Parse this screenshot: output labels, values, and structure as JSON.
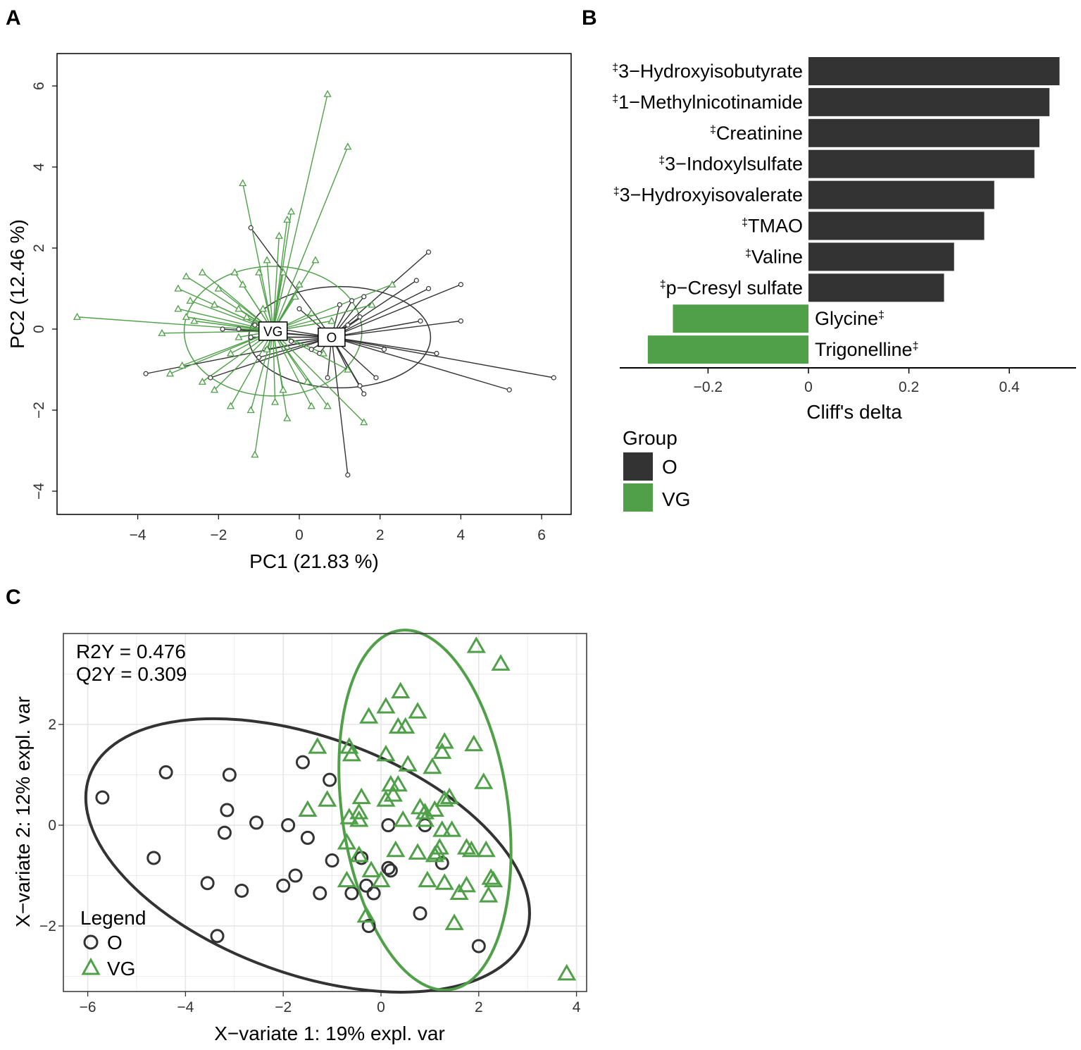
{
  "colors": {
    "O": "#333333",
    "VG": "#4fa048",
    "grid": "#e6e6e6"
  },
  "panels": {
    "A": "A",
    "B": "B",
    "C": "C"
  },
  "chart_data": [
    {
      "panel": "A",
      "type": "scatter",
      "title": "",
      "xlabel": "PC1 (21.83 %)",
      "ylabel": "PC2 (12.46 %)",
      "xlim": [
        -6,
        6.8
      ],
      "ylim": [
        -4.5,
        6.8
      ],
      "xticks": [
        -4,
        -2,
        0,
        2,
        4,
        6
      ],
      "yticks": [
        -4,
        -2,
        0,
        2,
        4,
        6
      ],
      "xtick_labels": [
        "−4",
        "−2",
        "0",
        "2",
        "4",
        "6"
      ],
      "ytick_labels": [
        "−4",
        "−2",
        "0",
        "2",
        "4",
        "6"
      ],
      "centroids": [
        {
          "group": "O",
          "label": "O",
          "x": 0.8,
          "y": -0.2
        },
        {
          "group": "VG",
          "label": "VG",
          "x": -0.65,
          "y": -0.05
        }
      ],
      "ellipses": [
        {
          "group": "O",
          "cx": 1.0,
          "cy": -0.2,
          "rx": 2.25,
          "ry": 1.25
        },
        {
          "group": "VG",
          "cx": -0.65,
          "cy": -0.05,
          "rx": 2.2,
          "ry": 1.6
        }
      ],
      "series": [
        {
          "name": "O",
          "points": [
            [
              -1.2,
              2.5
            ],
            [
              3.2,
              1.9
            ],
            [
              2.9,
              1.2
            ],
            [
              4.0,
              1.1
            ],
            [
              3.2,
              1.0
            ],
            [
              1.6,
              0.8
            ],
            [
              1.3,
              0.7
            ],
            [
              1.0,
              0.6
            ],
            [
              4.0,
              0.2
            ],
            [
              1.5,
              0.3
            ],
            [
              1.2,
              0.1
            ],
            [
              3.0,
              0.2
            ],
            [
              -1.9,
              0.0
            ],
            [
              -1.5,
              0.0
            ],
            [
              -1.1,
              0.1
            ],
            [
              -1.2,
              -0.2
            ],
            [
              2.1,
              -0.5
            ],
            [
              3.4,
              -0.6
            ],
            [
              6.3,
              -1.2
            ],
            [
              5.2,
              -1.5
            ],
            [
              -3.8,
              -1.1
            ],
            [
              -2.2,
              -1.2
            ],
            [
              -1.0,
              -0.7
            ],
            [
              0.5,
              -0.6
            ],
            [
              1.2,
              -1.0
            ],
            [
              0.7,
              -1.2
            ],
            [
              1.9,
              -1.2
            ],
            [
              1.5,
              -1.4
            ],
            [
              1.6,
              -1.6
            ],
            [
              1.2,
              -3.6
            ],
            [
              0.3,
              -0.5
            ],
            [
              -0.8,
              -0.5
            ],
            [
              0.0,
              0.5
            ],
            [
              -0.5,
              -0.2
            ],
            [
              -0.2,
              -0.3
            ]
          ]
        },
        {
          "name": "VG",
          "points": [
            [
              -5.5,
              0.3
            ],
            [
              0.7,
              5.8
            ],
            [
              1.2,
              4.5
            ],
            [
              -1.4,
              3.6
            ],
            [
              -0.2,
              2.9
            ],
            [
              -0.3,
              2.7
            ],
            [
              -0.5,
              2.3
            ],
            [
              -0.8,
              1.7
            ],
            [
              0.4,
              1.7
            ],
            [
              -1.0,
              1.4
            ],
            [
              -2.8,
              1.3
            ],
            [
              -2.4,
              1.4
            ],
            [
              -1.6,
              1.4
            ],
            [
              -0.4,
              1.4
            ],
            [
              -3.0,
              1.0
            ],
            [
              -2.0,
              1.0
            ],
            [
              -1.4,
              1.1
            ],
            [
              0.0,
              1.1
            ],
            [
              2.3,
              1.1
            ],
            [
              -2.7,
              0.7
            ],
            [
              -0.1,
              0.8
            ],
            [
              -2.1,
              0.6
            ],
            [
              -3.0,
              0.5
            ],
            [
              1.8,
              0.6
            ],
            [
              -2.8,
              0.3
            ],
            [
              -1.5,
              0.5
            ],
            [
              -3.4,
              -0.1
            ],
            [
              -2.6,
              0.2
            ],
            [
              -2.9,
              -0.9
            ],
            [
              -3.2,
              -1.1
            ],
            [
              -2.4,
              -1.3
            ],
            [
              -1.7,
              -0.6
            ],
            [
              -2.1,
              -1.5
            ],
            [
              -1.7,
              -1.9
            ],
            [
              -1.2,
              -2.0
            ],
            [
              -0.6,
              -1.8
            ],
            [
              -0.4,
              -1.5
            ],
            [
              0.3,
              -1.9
            ],
            [
              0.7,
              -1.9
            ],
            [
              -0.3,
              -2.2
            ],
            [
              1.6,
              -2.3
            ],
            [
              -1.1,
              -3.1
            ],
            [
              0.2,
              -1.3
            ],
            [
              0.6,
              -0.6
            ],
            [
              1.2,
              -1.0
            ],
            [
              -0.8,
              -0.5
            ],
            [
              -1.5,
              -0.2
            ],
            [
              0.3,
              0.4
            ],
            [
              -1.3,
              0.3
            ],
            [
              -0.9,
              0.5
            ],
            [
              0.8,
              0.2
            ]
          ]
        }
      ]
    },
    {
      "panel": "B",
      "type": "bar",
      "orientation": "horizontal",
      "xlabel": "Cliff's delta",
      "xlim": [
        -0.37,
        0.53
      ],
      "xticks": [
        -0.2,
        0,
        0.2,
        0.4
      ],
      "xtick_labels": [
        "−0.2",
        "0",
        "0.2",
        "0.4"
      ],
      "categories": [
        "3−Hydroxyisobutyrate",
        "1−Methylnicotinamide",
        "Creatinine",
        "3−Indoxylsulfate",
        "3−Hydroxyisovalerate",
        "TMAO",
        "Valine",
        "p−Cresyl sulfate",
        "Glycine",
        "Trigonelline"
      ],
      "dagger": "‡",
      "values": [
        0.5,
        0.48,
        0.46,
        0.45,
        0.37,
        0.35,
        0.29,
        0.27,
        -0.27,
        -0.32
      ],
      "groups": [
        "O",
        "O",
        "O",
        "O",
        "O",
        "O",
        "O",
        "O",
        "VG",
        "VG"
      ],
      "legend": {
        "title": "Group",
        "items": [
          "O",
          "VG"
        ]
      }
    },
    {
      "panel": "C",
      "type": "scatter",
      "xlabel": "X−variate 1: 19% expl. var",
      "ylabel": "X−variate 2: 12% expl. var",
      "xlim": [
        -6.6,
        4.3
      ],
      "ylim": [
        -3.3,
        3.8
      ],
      "xticks": [
        -6,
        -4,
        -2,
        0,
        2,
        4
      ],
      "yticks": [
        -2,
        0,
        2
      ],
      "xtick_labels": [
        "−6",
        "−4",
        "−2",
        "0",
        "2",
        "4"
      ],
      "ytick_labels": [
        "−2",
        "0",
        "2"
      ],
      "annotations": [
        "R2Y = 0.476",
        "Q2Y = 0.309"
      ],
      "legend": {
        "title": "Legend",
        "items": [
          "O",
          "VG"
        ]
      },
      "ellipses": [
        {
          "group": "O",
          "cx": -1.5,
          "cy": -0.6,
          "rx": 4.75,
          "ry": 2.35,
          "angle_deg": 20
        },
        {
          "group": "VG",
          "cx": 0.9,
          "cy": 0.3,
          "rx": 1.7,
          "ry": 3.6,
          "angle_deg": -8
        }
      ],
      "series": [
        {
          "name": "O",
          "points": [
            [
              -5.7,
              0.55
            ],
            [
              -4.4,
              1.05
            ],
            [
              -3.1,
              1.0
            ],
            [
              -1.6,
              1.25
            ],
            [
              -1.05,
              0.9
            ],
            [
              -3.15,
              0.3
            ],
            [
              -2.55,
              0.05
            ],
            [
              -1.9,
              0.0
            ],
            [
              -3.2,
              -0.15
            ],
            [
              -1.5,
              -0.25
            ],
            [
              -4.65,
              -0.65
            ],
            [
              -1.0,
              -0.7
            ],
            [
              -3.55,
              -1.15
            ],
            [
              -2.85,
              -1.3
            ],
            [
              -1.75,
              -1.0
            ],
            [
              -2.0,
              -1.2
            ],
            [
              -1.25,
              -1.35
            ],
            [
              -0.4,
              -0.65
            ],
            [
              -0.6,
              -1.35
            ],
            [
              -0.3,
              -1.2
            ],
            [
              -0.15,
              -1.35
            ],
            [
              0.15,
              -0.85
            ],
            [
              0.2,
              -0.9
            ],
            [
              0.15,
              0.0
            ],
            [
              0.9,
              0.0
            ],
            [
              1.25,
              -0.75
            ],
            [
              0.8,
              -1.75
            ],
            [
              -0.25,
              -2.0
            ],
            [
              2.0,
              -2.4
            ],
            [
              -3.35,
              -2.2
            ]
          ]
        },
        {
          "name": "VG",
          "points": [
            [
              1.95,
              3.55
            ],
            [
              2.45,
              3.2
            ],
            [
              0.4,
              2.65
            ],
            [
              0.75,
              2.25
            ],
            [
              0.1,
              2.35
            ],
            [
              -0.25,
              2.15
            ],
            [
              0.35,
              1.95
            ],
            [
              0.5,
              1.95
            ],
            [
              -1.3,
              1.55
            ],
            [
              -0.65,
              1.55
            ],
            [
              -0.6,
              1.4
            ],
            [
              1.3,
              1.65
            ],
            [
              1.9,
              1.6
            ],
            [
              0.1,
              1.4
            ],
            [
              1.25,
              1.45
            ],
            [
              0.55,
              1.2
            ],
            [
              1.05,
              1.15
            ],
            [
              2.1,
              0.85
            ],
            [
              0.2,
              0.8
            ],
            [
              0.35,
              0.8
            ],
            [
              -1.1,
              0.5
            ],
            [
              -0.4,
              0.55
            ],
            [
              0.1,
              0.5
            ],
            [
              0.25,
              0.6
            ],
            [
              1.4,
              0.55
            ],
            [
              1.3,
              0.5
            ],
            [
              -1.5,
              0.3
            ],
            [
              -0.65,
              0.15
            ],
            [
              -0.45,
              0.25
            ],
            [
              -0.45,
              0.1
            ],
            [
              0.45,
              0.1
            ],
            [
              0.8,
              0.35
            ],
            [
              1.1,
              0.3
            ],
            [
              0.9,
              0.25
            ],
            [
              0.9,
              0.1
            ],
            [
              1.25,
              -0.1
            ],
            [
              1.45,
              -0.1
            ],
            [
              -0.7,
              -0.35
            ],
            [
              -0.45,
              -0.6
            ],
            [
              0.3,
              -0.5
            ],
            [
              1.2,
              -0.45
            ],
            [
              1.1,
              -0.6
            ],
            [
              1.15,
              -0.55
            ],
            [
              0.75,
              -0.55
            ],
            [
              1.75,
              -0.45
            ],
            [
              1.85,
              -0.5
            ],
            [
              2.15,
              -0.5
            ],
            [
              -0.7,
              -1.1
            ],
            [
              -0.2,
              -0.9
            ],
            [
              0.0,
              -1.1
            ],
            [
              0.95,
              -1.1
            ],
            [
              1.3,
              -1.15
            ],
            [
              1.75,
              -1.2
            ],
            [
              2.25,
              -1.05
            ],
            [
              2.3,
              -1.1
            ],
            [
              1.6,
              -1.35
            ],
            [
              2.2,
              -1.4
            ],
            [
              -0.3,
              -1.8
            ],
            [
              1.5,
              -1.95
            ],
            [
              3.8,
              -2.95
            ]
          ]
        }
      ]
    }
  ]
}
